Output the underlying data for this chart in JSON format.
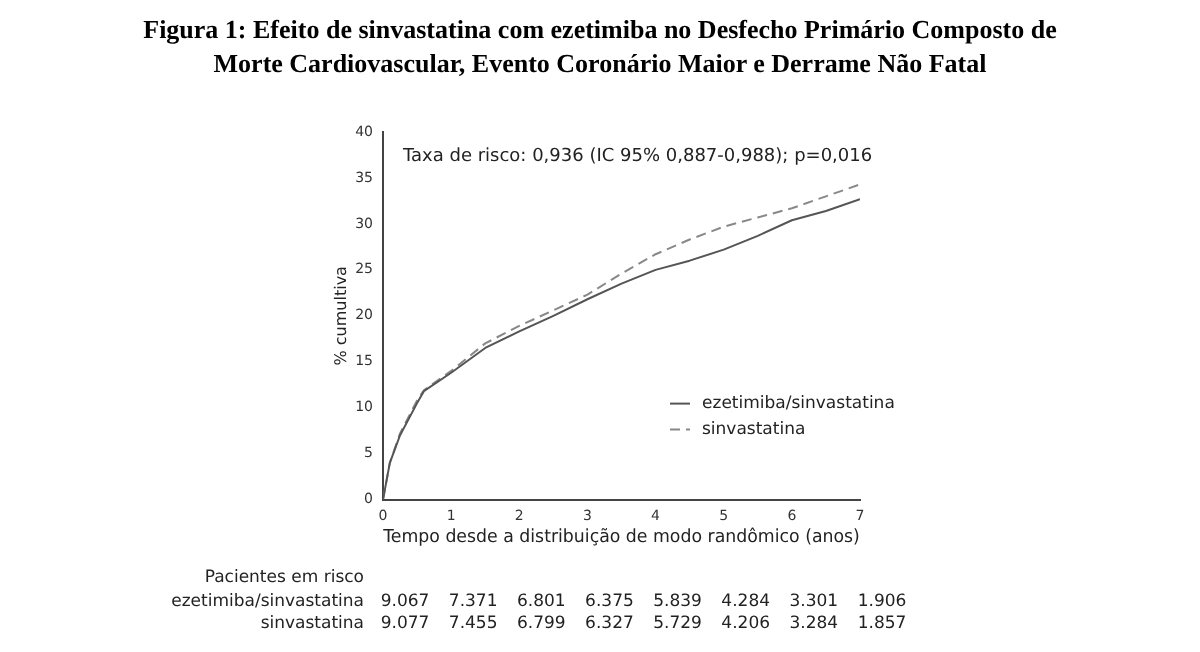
{
  "chart_data": {
    "type": "line",
    "title": "Figura 1: Efeito de sinvastatina com ezetimiba  no Desfecho Primário Composto de Morte Cardiovascular, Evento Coronário Maior e Derrame Não Fatal",
    "xlabel": "Tempo desde a distribuição de modo randômico (anos)",
    "ylabel": "% cumultiva",
    "x": [
      0,
      0.1,
      0.25,
      0.5,
      0.6,
      1,
      1.5,
      2,
      2.5,
      3,
      3.5,
      4,
      4.5,
      5,
      5.5,
      6,
      6.5,
      7
    ],
    "series": [
      {
        "name": "ezetimiba/sinvastatina",
        "color": "#555555",
        "line_style": "solid",
        "values": [
          0,
          4,
          7,
          10.5,
          11.8,
          13.8,
          16.5,
          18.3,
          20,
          21.8,
          23.5,
          25,
          26,
          27.2,
          28.7,
          30.4,
          31.4,
          32.7
        ]
      },
      {
        "name": "sinvastatina",
        "color": "#888888",
        "line_style": "dashed",
        "values": [
          0,
          4,
          7.2,
          10.8,
          11.9,
          14,
          17,
          18.9,
          20.6,
          22.3,
          24.6,
          26.7,
          28.3,
          29.7,
          30.7,
          31.7,
          33,
          34.3
        ]
      }
    ],
    "xlim": [
      0,
      7
    ],
    "xticks": [
      0,
      1,
      2,
      3,
      4,
      5,
      6,
      7
    ],
    "ylim": [
      0,
      40
    ],
    "yticks": [
      0,
      5,
      10,
      15,
      20,
      25,
      30,
      35,
      40
    ],
    "grid": false,
    "legend": "bottom right",
    "marker": "none",
    "annotations": [
      "Taxa de risco: 0,936 (IC 95% 0,887-0,988); p=0,016",
      "Pacientes em risco",
      "ezetimiba/sinvastatina  9.067  7.371  6.801  6.375  5.839  4.284  3.301  1.906",
      "sinvastatina  9.077  7.455  6.799  6.327  5.729  4.206  3.284  1.857"
    ]
  }
}
